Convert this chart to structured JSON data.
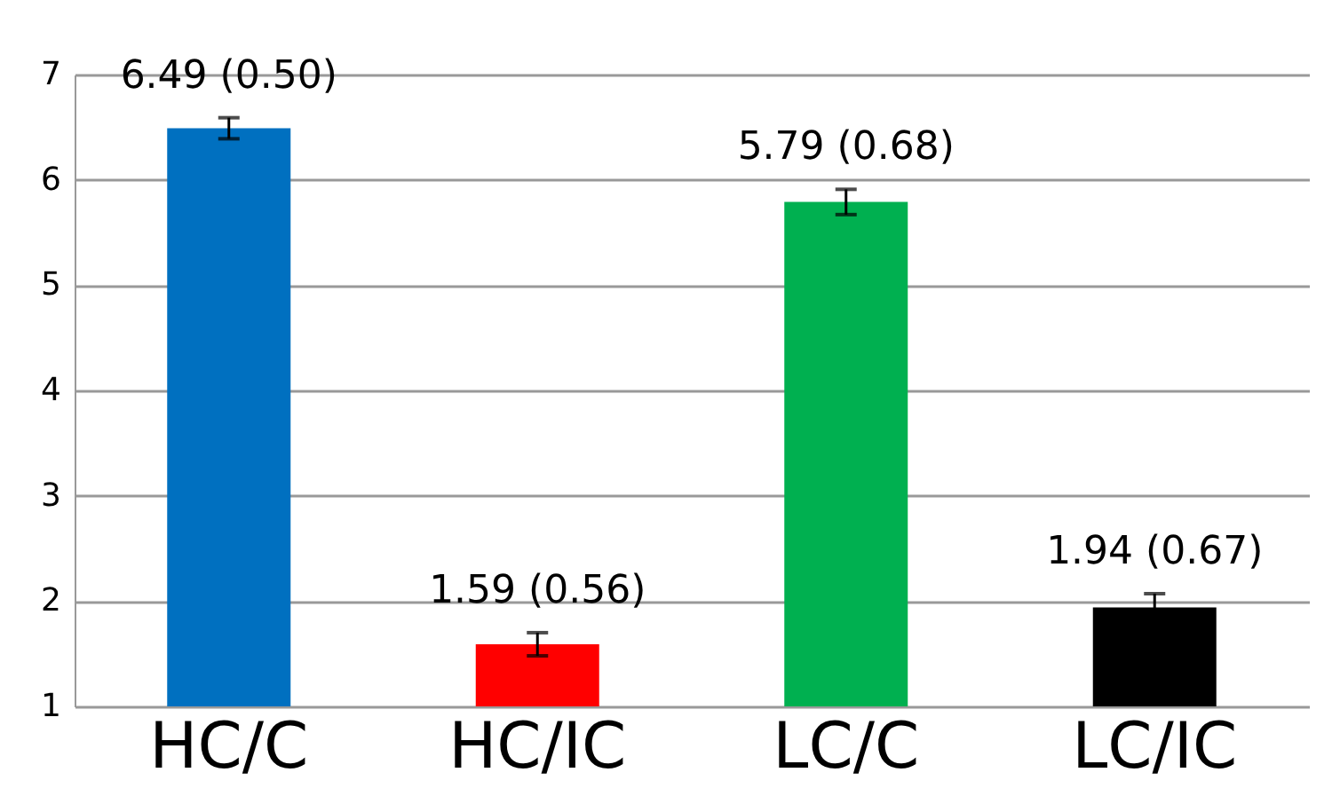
{
  "chart_data": {
    "type": "bar",
    "categories": [
      "HC/C",
      "HC/IC",
      "LC/C",
      "LC/IC"
    ],
    "values": [
      6.49,
      1.59,
      5.79,
      1.94
    ],
    "colors": [
      "#0070c0",
      "#ff0000",
      "#00b050",
      "#000000"
    ],
    "errors": [
      0.1,
      0.11,
      0.12,
      0.13
    ],
    "value_labels": [
      "6.49 (0.50)",
      "1.59 (0.56)",
      "5.79 (0.68)",
      "1.94 (0.67)"
    ],
    "ylim": [
      1,
      7
    ],
    "yticks": [
      1,
      2,
      3,
      4,
      5,
      6,
      7
    ],
    "grid": "y"
  }
}
